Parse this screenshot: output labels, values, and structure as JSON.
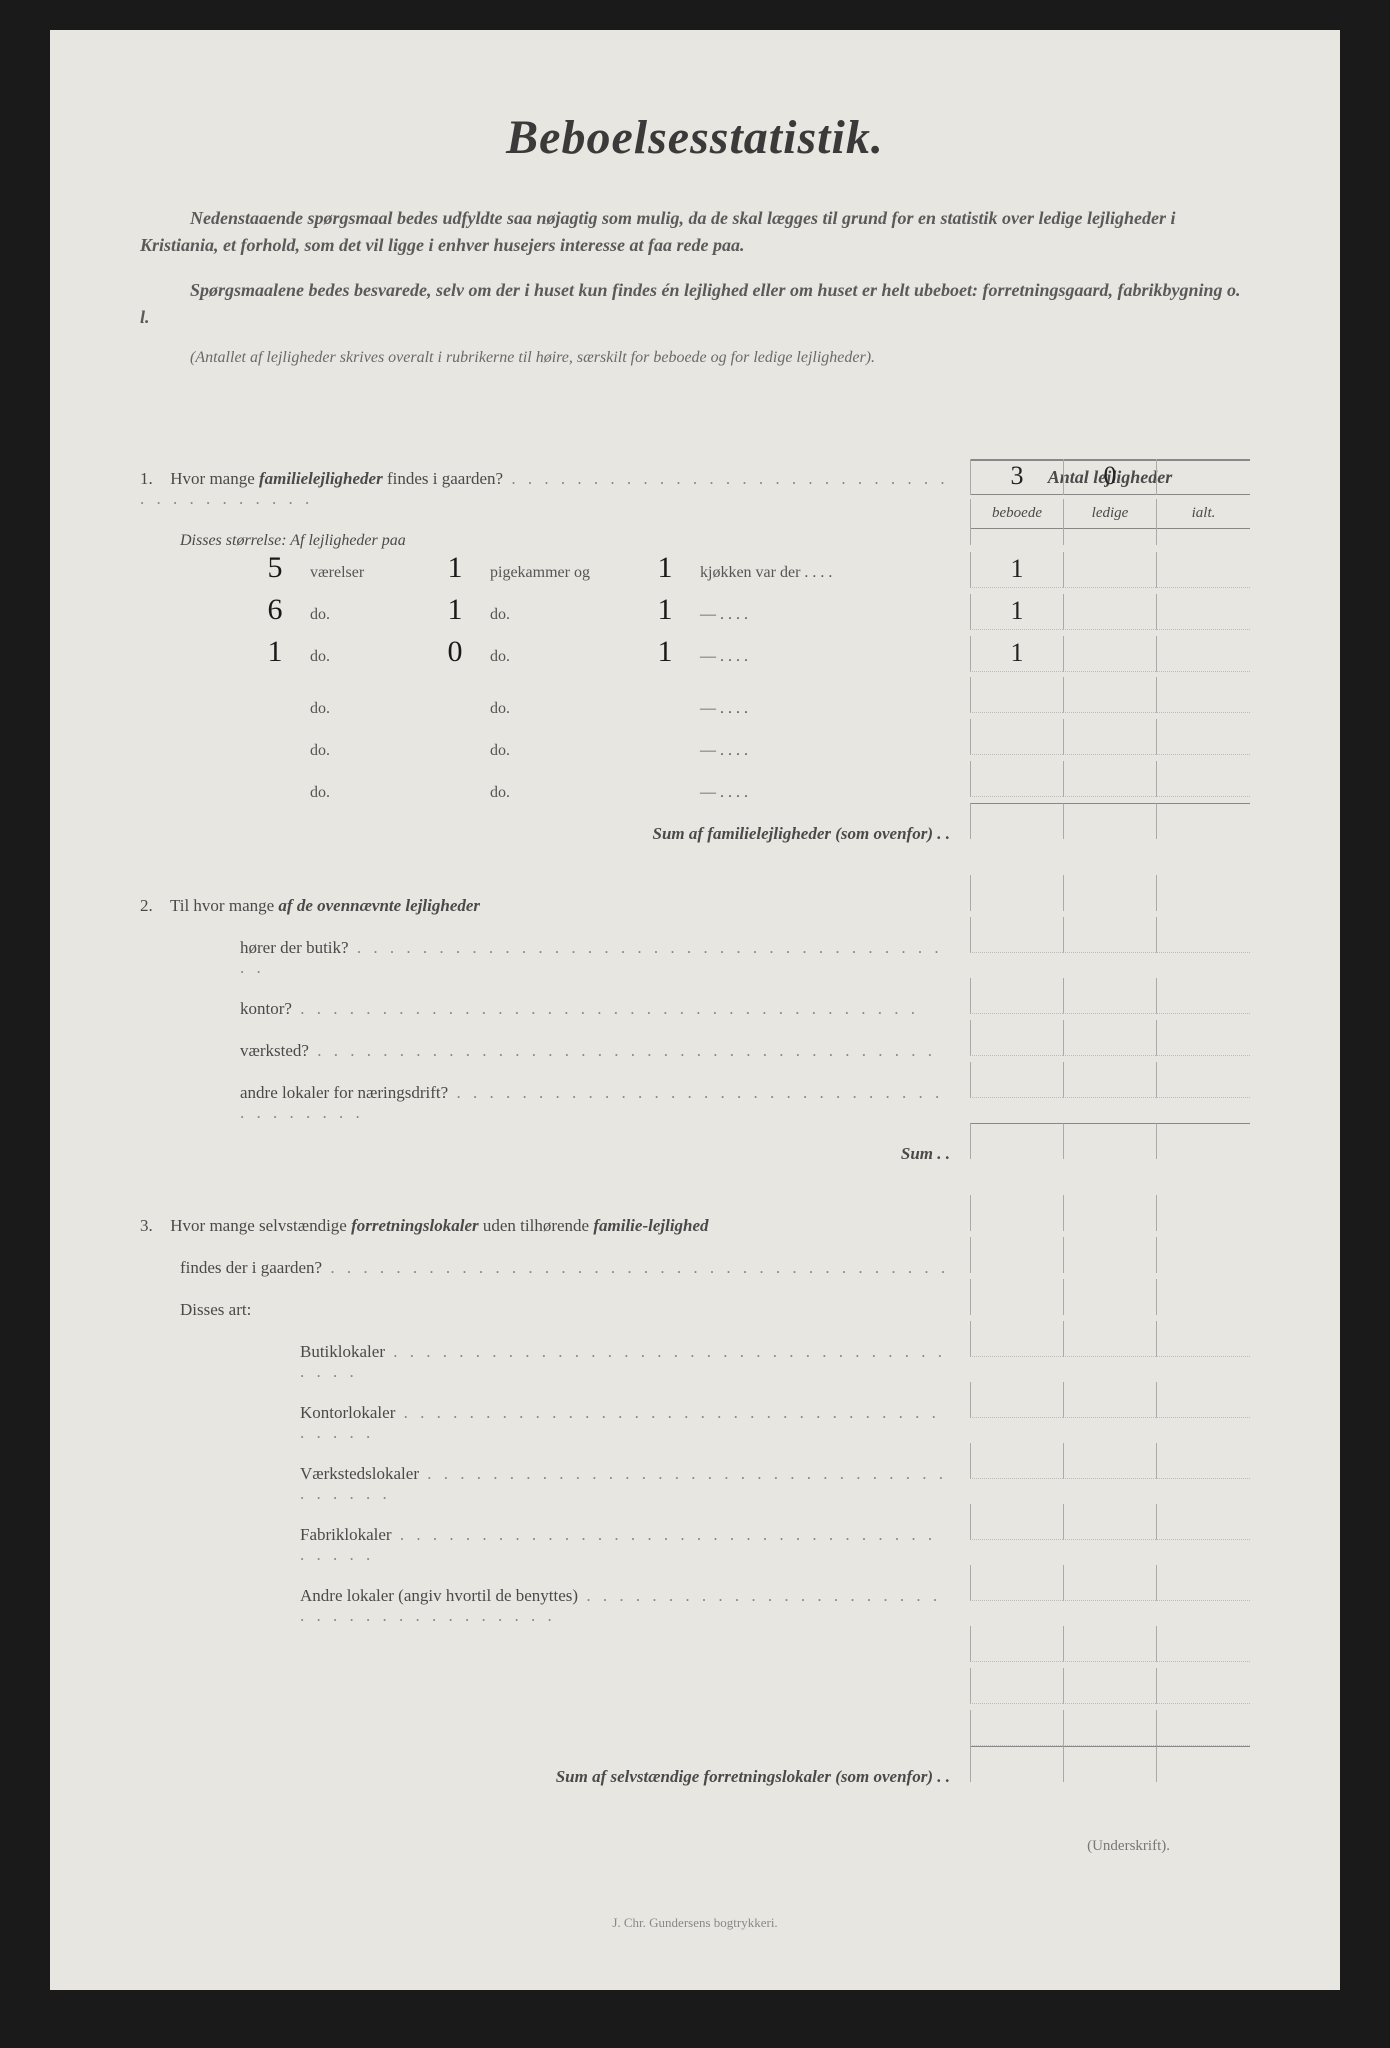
{
  "title": "Beboelsesstatistik.",
  "intro1": "Nedenstaaende spørgsmaal bedes udfyldte saa nøjagtig som mulig, da de skal lægges til grund for en statistik over ledige lejligheder i Kristiania, et forhold, som det vil ligge i enhver husejers interesse at faa rede paa.",
  "intro2": "Spørgsmaalene bedes besvarede, selv om der i huset kun findes én lejlighed eller om huset er helt ubeboet: forretningsgaard, fabrikbygning o. l.",
  "subnote": "(Antallet af lejligheder skrives overalt i rubrikerne til høire, særskilt for beboede og for ledige lejligheder).",
  "tableHeader": "Antal lejligheder",
  "colBeboede": "beboede",
  "colLedige": "ledige",
  "colIalt": "ialt.",
  "q1": {
    "num": "1.",
    "text": "Hvor mange ",
    "em": "familielejligheder",
    "text2": " findes i gaarden?",
    "beboede": "3",
    "ledige": "0",
    "ialt": ""
  },
  "disses": "Disses størrelse:  Af lejligheder paa",
  "sizeRows": [
    {
      "v": "5",
      "vl": "værelser",
      "p": "1",
      "pl": "pigekammer og",
      "k": "1",
      "kl": "kjøkken var der",
      "b": "1",
      "l": "",
      "i": ""
    },
    {
      "v": "6",
      "vl": "do.",
      "p": "1",
      "pl": "do.",
      "k": "1",
      "kl": "—",
      "b": "1",
      "l": "",
      "i": ""
    },
    {
      "v": "1",
      "vl": "do.",
      "p": "0",
      "pl": "do.",
      "k": "1",
      "kl": "—",
      "b": "1",
      "l": "",
      "i": ""
    },
    {
      "v": "",
      "vl": "do.",
      "p": "",
      "pl": "do.",
      "k": "",
      "kl": "—",
      "b": "",
      "l": "",
      "i": ""
    },
    {
      "v": "",
      "vl": "do.",
      "p": "",
      "pl": "do.",
      "k": "",
      "kl": "—",
      "b": "",
      "l": "",
      "i": ""
    },
    {
      "v": "",
      "vl": "do.",
      "p": "",
      "pl": "do.",
      "k": "",
      "kl": "—",
      "b": "",
      "l": "",
      "i": ""
    }
  ],
  "sum1": "Sum af familielejligheder (som ovenfor) . .",
  "q2": {
    "num": "2.",
    "text": "Til hvor mange ",
    "em": "af de ovennævnte lejligheder"
  },
  "q2rows": [
    {
      "label": "hører der butik?"
    },
    {
      "label": "kontor?"
    },
    {
      "label": "værksted?"
    },
    {
      "label": "andre lokaler for næringsdrift?"
    }
  ],
  "sum2": "Sum . .",
  "q3": {
    "num": "3.",
    "text": "Hvor mange selvstændige ",
    "em": "forretningslokaler",
    "text2": " uden tilhørende ",
    "em2": "familie-lejlighed",
    "text3": " findes der i gaarden?"
  },
  "q3art": "Disses art:",
  "q3rows": [
    {
      "label": "Butiklokaler"
    },
    {
      "label": "Kontorlokaler"
    },
    {
      "label": "Værkstedslokaler"
    },
    {
      "label": "Fabriklokaler"
    },
    {
      "label": "Andre lokaler (angiv hvortil de benyttes)"
    }
  ],
  "sum3": "Sum af selvstændige forretningslokaler (som ovenfor) . .",
  "signature": "(Underskrift).",
  "printer": "J. Chr. Gundersens bogtrykkeri."
}
